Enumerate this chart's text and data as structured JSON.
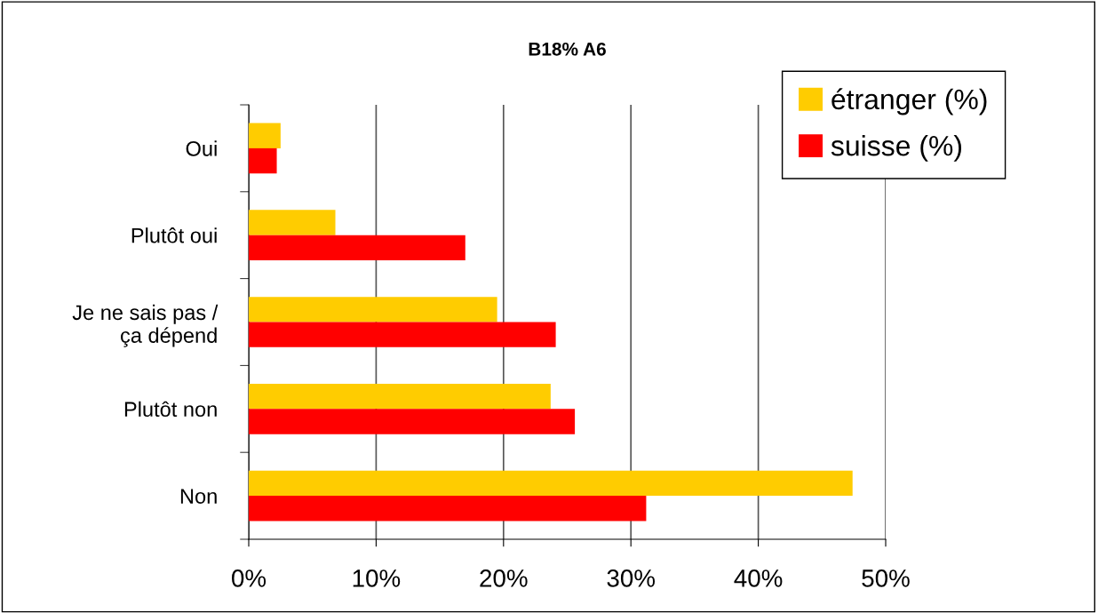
{
  "chart_data": {
    "type": "bar",
    "orientation": "horizontal",
    "title": "B18% A6",
    "categories": [
      "Oui",
      "Plutôt oui",
      "Je ne sais pas /\nça dépend",
      "Plutôt non",
      "Non"
    ],
    "series": [
      {
        "name": "étranger (%)",
        "color": "#ffcc00",
        "values": [
          2.5,
          6.8,
          19.5,
          23.7,
          47.4
        ]
      },
      {
        "name": "suisse (%)",
        "color": "#ff0000",
        "values": [
          2.2,
          17.0,
          24.1,
          25.6,
          31.2
        ]
      }
    ],
    "xlim": [
      0,
      50
    ],
    "xticks": [
      {
        "value": 0,
        "label": "0%"
      },
      {
        "value": 10,
        "label": "10%"
      },
      {
        "value": 20,
        "label": "20%"
      },
      {
        "value": 30,
        "label": "30%"
      },
      {
        "value": 40,
        "label": "40%"
      },
      {
        "value": 50,
        "label": "50%"
      }
    ],
    "grid": "x",
    "legend": "top right"
  }
}
